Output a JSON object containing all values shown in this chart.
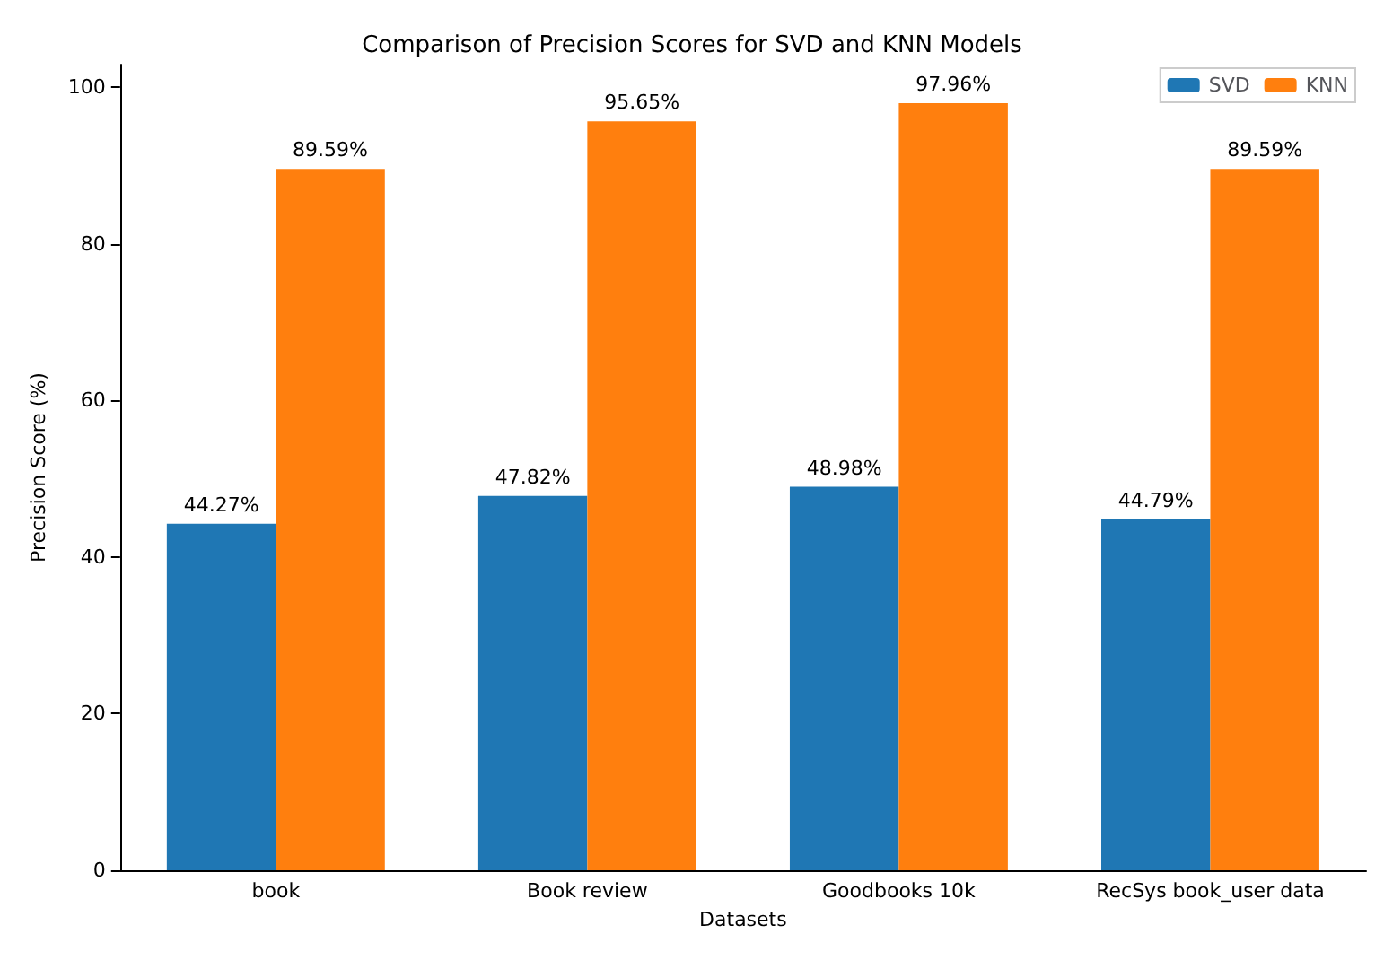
{
  "chart_data": {
    "type": "bar",
    "title": "Comparison of Precision Scores for SVD and KNN Models",
    "xlabel": "Datasets",
    "ylabel": "Precision Score (%)",
    "categories": [
      "book",
      "Book review",
      "Goodbooks 10k",
      "RecSys book_user data"
    ],
    "series": [
      {
        "name": "SVD",
        "color": "#1f77b4",
        "values": [
          44.27,
          47.82,
          48.98,
          44.79
        ],
        "value_labels": [
          "44.27%",
          "47.82%",
          "48.98%",
          "44.79%"
        ]
      },
      {
        "name": "KNN",
        "color": "#ff7f0e",
        "values": [
          89.59,
          95.65,
          97.96,
          89.59
        ],
        "value_labels": [
          "89.59%",
          "95.65%",
          "97.96%",
          "89.59%"
        ]
      }
    ],
    "ylim": [
      0,
      102.9
    ],
    "yticks": [
      0,
      20,
      40,
      60,
      80,
      100
    ],
    "grid": false,
    "legend": "top right"
  }
}
